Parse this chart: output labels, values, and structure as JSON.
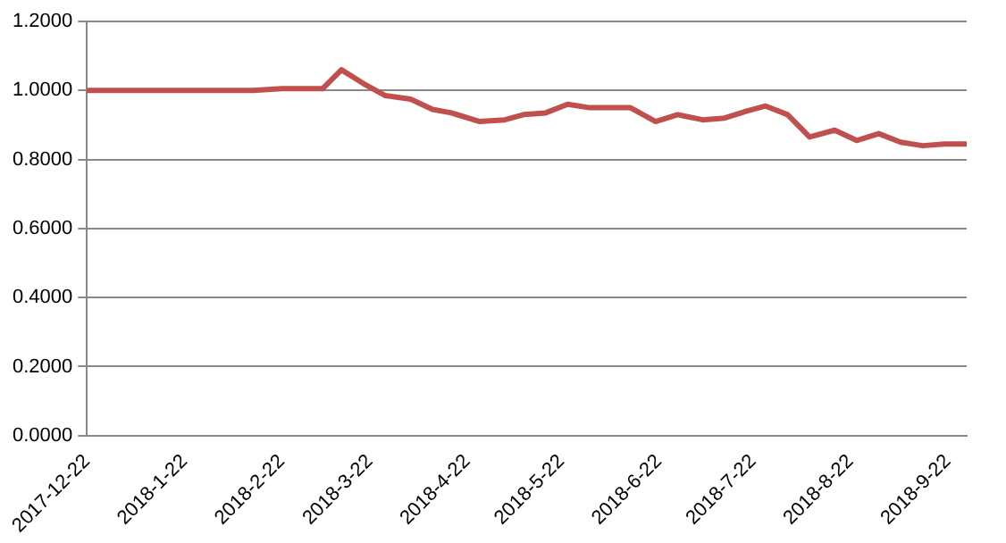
{
  "chart_data": {
    "type": "line",
    "x": [
      "2017-12-22",
      "2018-01-05",
      "2018-01-19",
      "2018-02-02",
      "2018-02-13",
      "2018-02-22",
      "2018-03-07",
      "2018-03-13",
      "2018-03-20",
      "2018-03-27",
      "2018-04-04",
      "2018-04-11",
      "2018-04-17",
      "2018-04-26",
      "2018-05-04",
      "2018-05-10",
      "2018-05-17",
      "2018-05-24",
      "2018-05-31",
      "2018-06-07",
      "2018-06-13",
      "2018-06-21",
      "2018-06-28",
      "2018-07-06",
      "2018-07-13",
      "2018-07-20",
      "2018-07-26",
      "2018-08-02",
      "2018-08-09",
      "2018-08-17",
      "2018-08-24",
      "2018-08-31",
      "2018-09-07",
      "2018-09-14",
      "2018-09-21",
      "2018-09-28"
    ],
    "series": [
      {
        "color": "#c0504d",
        "values": [
          1.0,
          1.0,
          1.0,
          1.0,
          1.0,
          1.005,
          1.005,
          1.06,
          1.02,
          0.985,
          0.975,
          0.945,
          0.935,
          0.91,
          0.915,
          0.93,
          0.935,
          0.96,
          0.95,
          0.95,
          0.95,
          0.91,
          0.93,
          0.915,
          0.92,
          0.94,
          0.955,
          0.93,
          0.865,
          0.885,
          0.855,
          0.875,
          0.85,
          0.84,
          0.845,
          0.845
        ]
      }
    ],
    "xlim": [
      "2017-12-22",
      "2018-09-28"
    ],
    "xticks": [
      {
        "value": "2017-12-22",
        "label": "2017-12-22"
      },
      {
        "value": "2018-01-22",
        "label": "2018-1-22"
      },
      {
        "value": "2018-02-22",
        "label": "2018-2-22"
      },
      {
        "value": "2018-03-22",
        "label": "2018-3-22"
      },
      {
        "value": "2018-04-22",
        "label": "2018-4-22"
      },
      {
        "value": "2018-05-22",
        "label": "2018-5-22"
      },
      {
        "value": "2018-06-22",
        "label": "2018-6-22"
      },
      {
        "value": "2018-07-22",
        "label": "2018-7-22"
      },
      {
        "value": "2018-08-22",
        "label": "2018-8-22"
      },
      {
        "value": "2018-09-22",
        "label": "2018-9-22"
      }
    ],
    "ylim": [
      0,
      1.2
    ],
    "yticks": [
      {
        "value": 0,
        "label": "0.0000"
      },
      {
        "value": 0.2,
        "label": "0.2000"
      },
      {
        "value": 0.4,
        "label": "0.4000"
      },
      {
        "value": 0.6,
        "label": "0.6000"
      },
      {
        "value": 0.8,
        "label": "0.8000"
      },
      {
        "value": 1.0,
        "label": "1.0000"
      },
      {
        "value": 1.2,
        "label": "1.2000"
      }
    ],
    "grid": "y",
    "legend": false,
    "marker": "none",
    "line_style": "solid"
  }
}
